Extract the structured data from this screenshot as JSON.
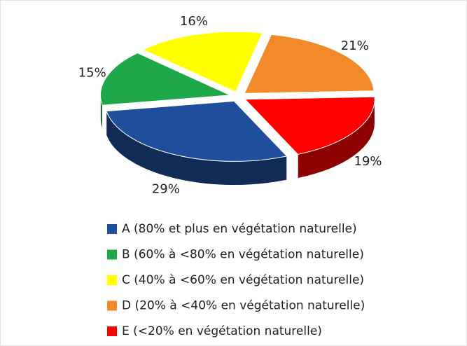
{
  "chart_data": {
    "type": "pie3d",
    "categories": [
      "A (80% et plus en végétation naturelle)",
      "B (60% à <80% en végétation naturelle)",
      "C (40% à <60% en végétation naturelle)",
      "D (20% à <40% en végétation naturelle)",
      "E (<20% en végétation naturelle)"
    ],
    "values": [
      29,
      15,
      16,
      21,
      19
    ],
    "value_labels": [
      "29%",
      "15%",
      "16%",
      "21%",
      "19%"
    ],
    "colors": [
      "#1f4e9c",
      "#1ea84a",
      "#ffff00",
      "#f28a2a",
      "#ff0000"
    ],
    "legend": "bottom"
  }
}
